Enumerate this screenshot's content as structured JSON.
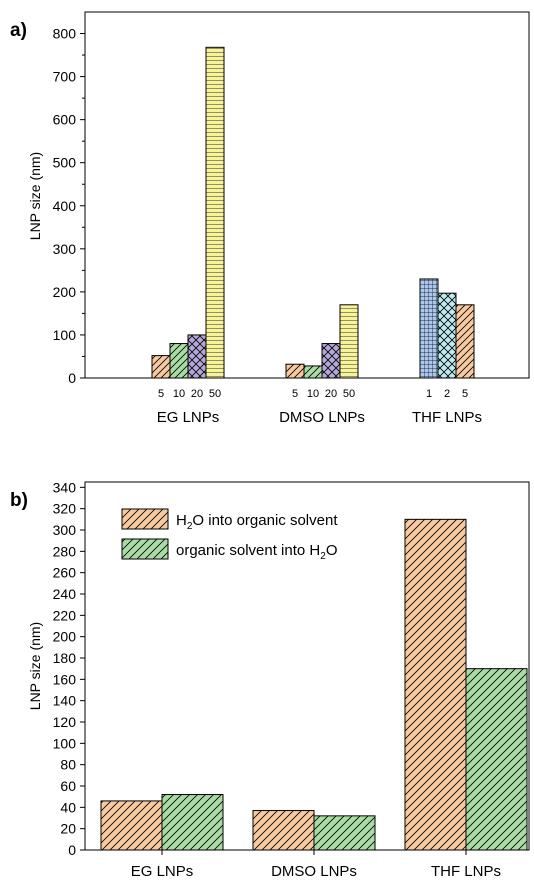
{
  "colors": {
    "orange": "#f7c99e",
    "green": "#a9dca4",
    "purple": "#b3a8d8",
    "yellow": "#f6f39a",
    "blue": "#a9c7ec",
    "cyan": "#bfeaf0",
    "stroke": "#000000"
  },
  "chart_data": [
    {
      "panel": "a)",
      "type": "bar",
      "ylabel": "LNP size (nm)",
      "xlabel": "",
      "ylim": [
        0,
        850
      ],
      "yticks": [
        0,
        100,
        200,
        300,
        400,
        500,
        600,
        700,
        800
      ],
      "groups": [
        {
          "name": "EG LNPs",
          "bars": [
            {
              "label": "5",
              "value": 52,
              "color": "orange",
              "pattern": "diag"
            },
            {
              "label": "10",
              "value": 80,
              "color": "green",
              "pattern": "diag"
            },
            {
              "label": "20",
              "value": 100,
              "color": "purple",
              "pattern": "cross"
            },
            {
              "label": "50",
              "value": 768,
              "color": "yellow",
              "pattern": "hlines"
            }
          ]
        },
        {
          "name": "DMSO LNPs",
          "bars": [
            {
              "label": "5",
              "value": 32,
              "color": "orange",
              "pattern": "diag"
            },
            {
              "label": "10",
              "value": 28,
              "color": "green",
              "pattern": "diag"
            },
            {
              "label": "20",
              "value": 80,
              "color": "purple",
              "pattern": "cross"
            },
            {
              "label": "50",
              "value": 170,
              "color": "yellow",
              "pattern": "hlines"
            }
          ]
        },
        {
          "name": "THF LNPs",
          "bars": [
            {
              "label": "1",
              "value": 230,
              "color": "blue",
              "pattern": "grid"
            },
            {
              "label": "2",
              "value": 197,
              "color": "cyan",
              "pattern": "cross"
            },
            {
              "label": "5",
              "value": 170,
              "color": "orange",
              "pattern": "diag"
            }
          ]
        }
      ]
    },
    {
      "panel": "b)",
      "type": "bar",
      "ylabel": "LNP size (nm)",
      "xlabel": "",
      "ylim": [
        0,
        345
      ],
      "yticks": [
        0,
        20,
        40,
        60,
        80,
        100,
        120,
        140,
        160,
        180,
        200,
        220,
        240,
        260,
        280,
        300,
        320,
        340
      ],
      "categories": [
        "EG LNPs",
        "DMSO LNPs",
        "THF LNPs"
      ],
      "series": [
        {
          "name": "H2O into organic solvent",
          "color": "orange",
          "values": [
            46,
            37,
            310
          ]
        },
        {
          "name": "organic solvent into H2O",
          "color": "green",
          "values": [
            52,
            32,
            170
          ]
        }
      ],
      "legend": "top-left"
    }
  ]
}
